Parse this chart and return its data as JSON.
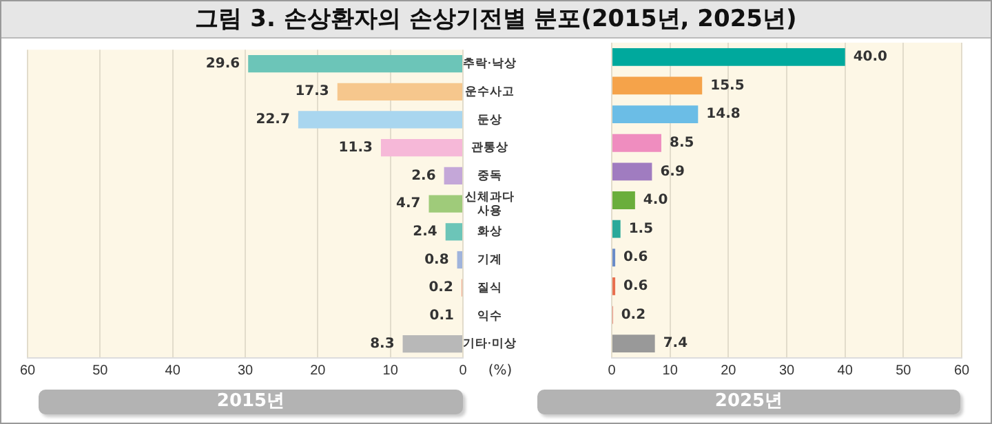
{
  "chart_data": [
    {
      "type": "bar",
      "title": "그림 3. 손상환자의 손상기전별 분포(2015년, 2025년)",
      "orientation": "horizontal",
      "xlabel": "2015년",
      "annotations": [
        "(%)"
      ],
      "categories": [
        "추락·낙상",
        "운수사고",
        "둔상",
        "관통상",
        "중독",
        "신체과다 사용",
        "화상",
        "기계",
        "질식",
        "익수",
        "기타·미상"
      ],
      "values": [
        29.6,
        17.3,
        22.7,
        11.3,
        2.6,
        4.7,
        2.4,
        0.8,
        0.2,
        0.1,
        8.3
      ],
      "colors": [
        "#6cc5b8",
        "#f6c78d",
        "#a9d6ef",
        "#f6b8d8",
        "#c4a7d8",
        "#9fcb7a",
        "#6cc5b8",
        "#a0b4dc",
        "#f0a890",
        "#f0a890",
        "#b8b8b8"
      ],
      "value_labels": [
        "29.6",
        "17.3",
        "22.7",
        "11.3",
        "2.6",
        "4.7",
        "2.4",
        "0.8",
        "0.2",
        "0.1",
        "8.3"
      ],
      "xlim": [
        60,
        0
      ],
      "xticks": [
        60,
        50,
        40,
        30,
        20,
        10,
        0
      ],
      "grid": "x"
    },
    {
      "type": "bar",
      "orientation": "horizontal",
      "xlabel": "2025년",
      "tick_labels": "x",
      "categories": [
        null,
        null,
        null,
        null,
        null,
        null,
        null,
        null,
        null,
        null,
        null
      ],
      "values": [
        40.0,
        15.5,
        14.8,
        8.5,
        6.9,
        4.0,
        1.5,
        0.6,
        0.6,
        0.2,
        7.4
      ],
      "colors": [
        "#00a99d",
        "#f5a34a",
        "#6bbde6",
        "#ef8dbf",
        "#a07cc0",
        "#6aae3c",
        "#2aa99a",
        "#6a8cc8",
        "#e87050",
        "#e06050",
        "#999999"
      ],
      "value_labels": [
        "40.0",
        "15.5",
        "14.8",
        "8.5",
        "6.9",
        "4.0",
        "1.5",
        "0.6",
        "0.6",
        "0.2",
        "7.4"
      ],
      "xlim": [
        0,
        60
      ],
      "xticks": [
        0,
        10,
        20,
        30,
        40,
        50,
        60
      ],
      "grid": "x"
    }
  ]
}
